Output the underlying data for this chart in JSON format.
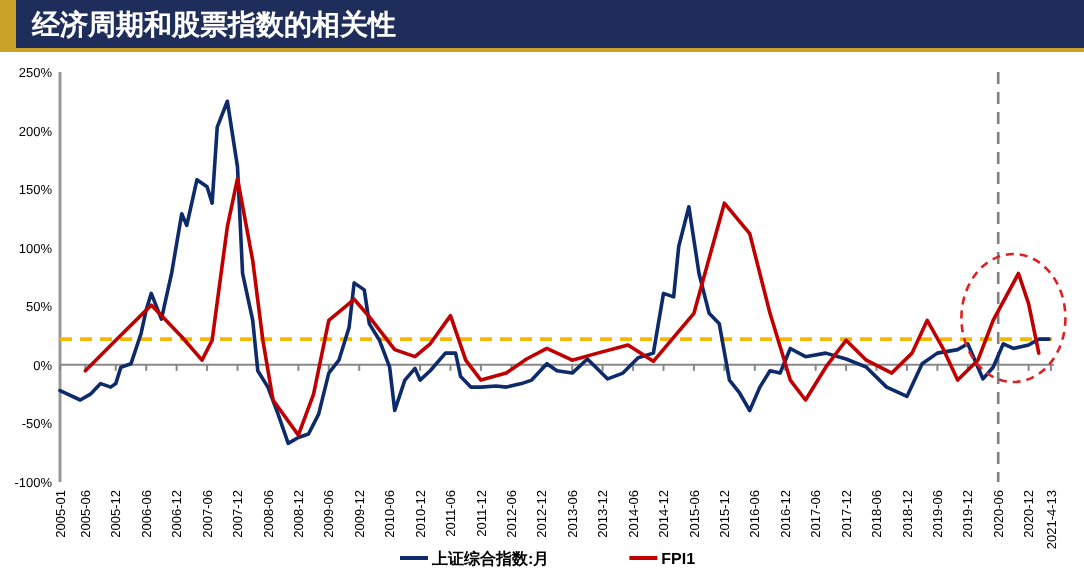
{
  "chart_data": {
    "type": "line",
    "title": "经济周期和股票指数的相关性",
    "ylim": [
      -100,
      250
    ],
    "yticks": [
      {
        "value": -100,
        "label": "-100%"
      },
      {
        "value": -50,
        "label": "-50%"
      },
      {
        "value": 0,
        "label": "0%"
      },
      {
        "value": 50,
        "label": "50%"
      },
      {
        "value": 100,
        "label": "100%"
      },
      {
        "value": 150,
        "label": "150%"
      },
      {
        "value": 200,
        "label": "200%"
      },
      {
        "value": 250,
        "label": "250%"
      }
    ],
    "xlim": [
      "2005-01",
      "2021-05"
    ],
    "xticks": [
      "2005-01",
      "2005-06",
      "2005-12",
      "2006-06",
      "2006-12",
      "2007-06",
      "2007-12",
      "2008-06",
      "2008-12",
      "2009-06",
      "2009-12",
      "2010-06",
      "2010-12",
      "2011-06",
      "2011-12",
      "2012-06",
      "2012-12",
      "2013-06",
      "2013-12",
      "2014-06",
      "2014-12",
      "2015-06",
      "2015-12",
      "2016-06",
      "2016-12",
      "2017-06",
      "2017-12",
      "2018-06",
      "2018-12",
      "2019-06",
      "2019-12",
      "2020-06",
      "2020-12",
      {
        "value": "2021-04-13",
        "label": "2021-4-13"
      }
    ],
    "grid": false,
    "legend": "bottom",
    "marker": "none",
    "line_style": "solid",
    "ref_lines": [
      {
        "axis": "y",
        "value": 22,
        "color": "#f5b800",
        "line_style": "dashed"
      },
      {
        "axis": "x",
        "value": "2020-06",
        "color": "#808080",
        "line_style": "dashed"
      }
    ],
    "series": [
      {
        "name": "上证综合指数:月",
        "color": "#0d2a6b",
        "x": [
          "2005-01",
          "2005-05",
          "2005-07",
          "2005-09",
          "2005-11",
          "2005-12",
          "2006-01",
          "2006-03",
          "2006-05",
          "2006-06",
          "2006-07",
          "2006-09",
          "2006-11",
          "2007-01",
          "2007-02",
          "2007-04",
          "2007-06",
          "2007-07",
          "2007-08",
          "2007-10",
          "2007-12",
          "2008-01",
          "2008-03",
          "2008-04",
          "2008-06",
          "2008-08",
          "2008-10",
          "2008-12",
          "2009-02",
          "2009-04",
          "2009-06",
          "2009-08",
          "2009-10",
          "2009-11",
          "2010-01",
          "2010-02",
          "2010-04",
          "2010-06",
          "2010-07",
          "2010-09",
          "2010-11",
          "2010-12",
          "2011-02",
          "2011-05",
          "2011-07",
          "2011-08",
          "2011-10",
          "2011-12",
          "2012-03",
          "2012-05",
          "2012-08",
          "2012-10",
          "2013-01",
          "2013-03",
          "2013-06",
          "2013-09",
          "2014-01",
          "2014-04",
          "2014-07",
          "2014-10",
          "2014-12",
          "2015-02",
          "2015-03",
          "2015-05",
          "2015-07",
          "2015-09",
          "2015-11",
          "2016-01",
          "2016-03",
          "2016-05",
          "2016-07",
          "2016-09",
          "2016-11",
          "2017-01",
          "2017-04",
          "2017-08",
          "2017-12",
          "2018-04",
          "2018-08",
          "2018-12",
          "2019-03",
          "2019-06",
          "2019-10",
          "2019-12",
          "2020-02",
          "2020-03",
          "2020-05",
          "2020-07",
          "2020-09",
          "2020-12",
          "2021-02",
          "2021-04"
        ],
        "values": [
          -22,
          -30,
          -25,
          -16,
          -19,
          -16,
          -2,
          1,
          27,
          47,
          61,
          39,
          78,
          129,
          119,
          158,
          152,
          138,
          203,
          225,
          169,
          78,
          38,
          -5,
          -19,
          -42,
          -67,
          -62,
          -59,
          -42,
          -7,
          4,
          32,
          70,
          64,
          35,
          21,
          -2,
          -39,
          -13,
          -3,
          -13,
          -5,
          10,
          10,
          -10,
          -19,
          -19,
          -18,
          -19,
          -16,
          -13,
          1,
          -5,
          -7,
          5,
          -12,
          -7,
          6,
          10,
          61,
          58,
          101,
          135,
          78,
          44,
          35,
          -13,
          -24,
          -39,
          -19,
          -5,
          -7,
          14,
          7,
          10,
          5,
          -2,
          -19,
          -27,
          1,
          10,
          13,
          18,
          -2,
          -12,
          -2,
          18,
          14,
          17,
          22,
          22
        ]
      },
      {
        "name": "FPI1",
        "color": "#c00000",
        "x": [
          "2005-06",
          "2005-12",
          "2006-07",
          "2007-01",
          "2007-05",
          "2007-07",
          "2007-10",
          "2007-12",
          "2008-03",
          "2008-05",
          "2008-07",
          "2008-12",
          "2009-03",
          "2009-06",
          "2009-11",
          "2010-02",
          "2010-07",
          "2010-11",
          "2011-02",
          "2011-06",
          "2011-09",
          "2011-12",
          "2012-05",
          "2012-09",
          "2013-01",
          "2013-06",
          "2013-11",
          "2014-05",
          "2014-10",
          "2015-06",
          "2015-12",
          "2016-05",
          "2016-09",
          "2017-01",
          "2017-04",
          "2017-08",
          "2017-12",
          "2018-04",
          "2018-09",
          "2019-01",
          "2019-04",
          "2019-07",
          "2019-10",
          "2020-02",
          "2020-05",
          "2020-10",
          "2020-12",
          "2021-02"
        ],
        "values": [
          -5,
          21,
          51,
          24,
          4,
          21,
          118,
          159,
          89,
          21,
          -30,
          -60,
          -25,
          38,
          56,
          41,
          13,
          7,
          18,
          42,
          4,
          -13,
          -7,
          5,
          14,
          4,
          10,
          17,
          3,
          44,
          138,
          112,
          44,
          -13,
          -30,
          -2,
          21,
          4,
          -7,
          10,
          38,
          15,
          -13,
          4,
          38,
          78,
          52,
          10
        ]
      }
    ]
  }
}
